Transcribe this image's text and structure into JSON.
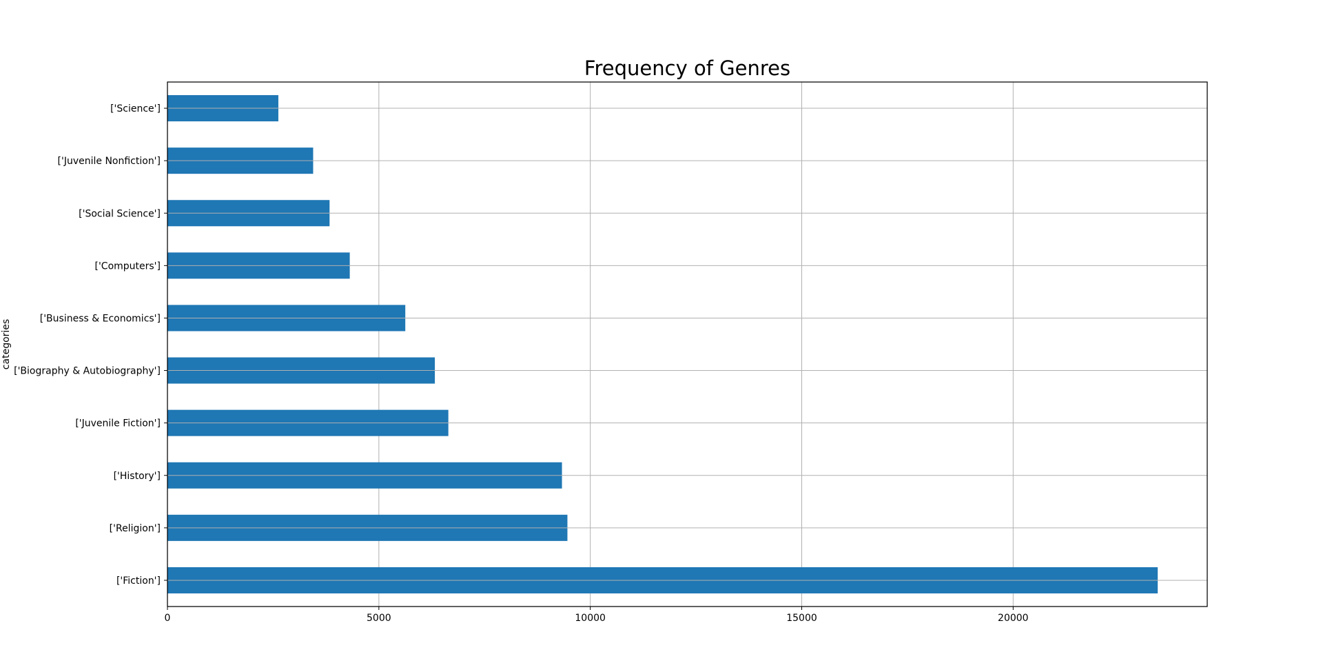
{
  "chart_data": {
    "type": "bar",
    "orientation": "horizontal",
    "title": "Frequency of Genres",
    "xlabel": "",
    "ylabel": "categories",
    "categories": [
      "['Fiction']",
      "['Religion']",
      "['History']",
      "['Juvenile Fiction']",
      "['Biography & Autobiography']",
      "['Business & Economics']",
      "['Computers']",
      "['Social Science']",
      "['Juvenile Nonfiction']",
      "['Science']"
    ],
    "values": [
      23419,
      9459,
      9330,
      6643,
      6324,
      5625,
      4312,
      3834,
      3446,
      2623
    ],
    "xlim": [
      0,
      24590
    ],
    "xticks": [
      "0",
      "5000",
      "10000",
      "15000",
      "20000"
    ],
    "grid": true,
    "legend": "none",
    "colors": {
      "bar": "#1f77b4",
      "grid": "#b0b0b0",
      "axes": "#000000",
      "background": "#ffffff"
    }
  }
}
